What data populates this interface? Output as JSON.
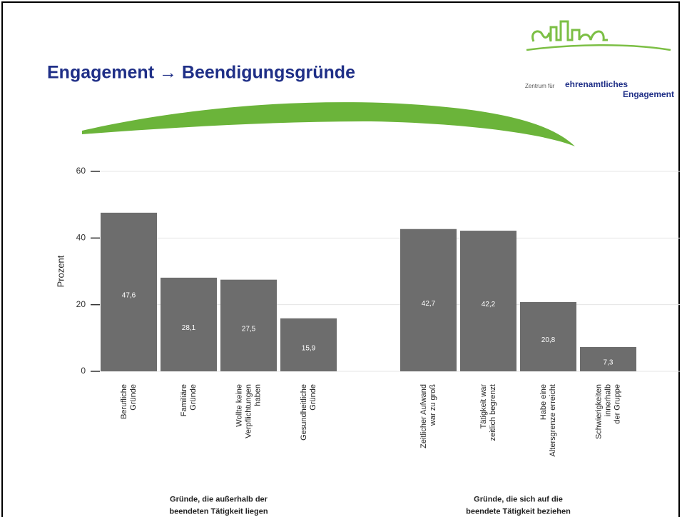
{
  "slide": {
    "title": "Engagement → Beendigungsgründe",
    "logo": {
      "prefix": "Zentrum für",
      "line1": "ehrenamtliches",
      "line2": "Engagement"
    }
  },
  "chart_data": {
    "type": "bar",
    "y_label": "Prozent",
    "categories": [
      "Berufliche\nGründe",
      "Familiäre\nGründe",
      "Wollte keine\nVerpflichtungen\nhaben",
      "Gesundheitliche\nGründe",
      null,
      "Zeitlicher Aufwand\nwar zu groß",
      "Tätigkeit war\nzeitlich begrenzt",
      "Habe eine\nAltersgrenze erreicht",
      "Schwierigkeiten\ninnerhalb\nder Gruppe"
    ],
    "values": [
      47.6,
      28.1,
      27.5,
      15.9,
      null,
      42.7,
      42.2,
      20.8,
      7.3
    ],
    "value_labels": [
      "47,6",
      "28,1",
      "27,5",
      "15,9",
      null,
      "42,7",
      "42,2",
      "20,8",
      "7,3"
    ],
    "color": "#6d6d6d",
    "ylim": [
      0,
      60
    ],
    "yticks": [
      0,
      20,
      40,
      60
    ],
    "grid": true,
    "groups": [
      {
        "label": "Gründe, die außerhalb der\nbeendeten Tätigkeit liegen",
        "from": 0,
        "to": 3
      },
      {
        "label": "Gründe, die sich auf die\nbeendete Tätigkeit beziehen",
        "from": 5,
        "to": 8
      }
    ]
  }
}
